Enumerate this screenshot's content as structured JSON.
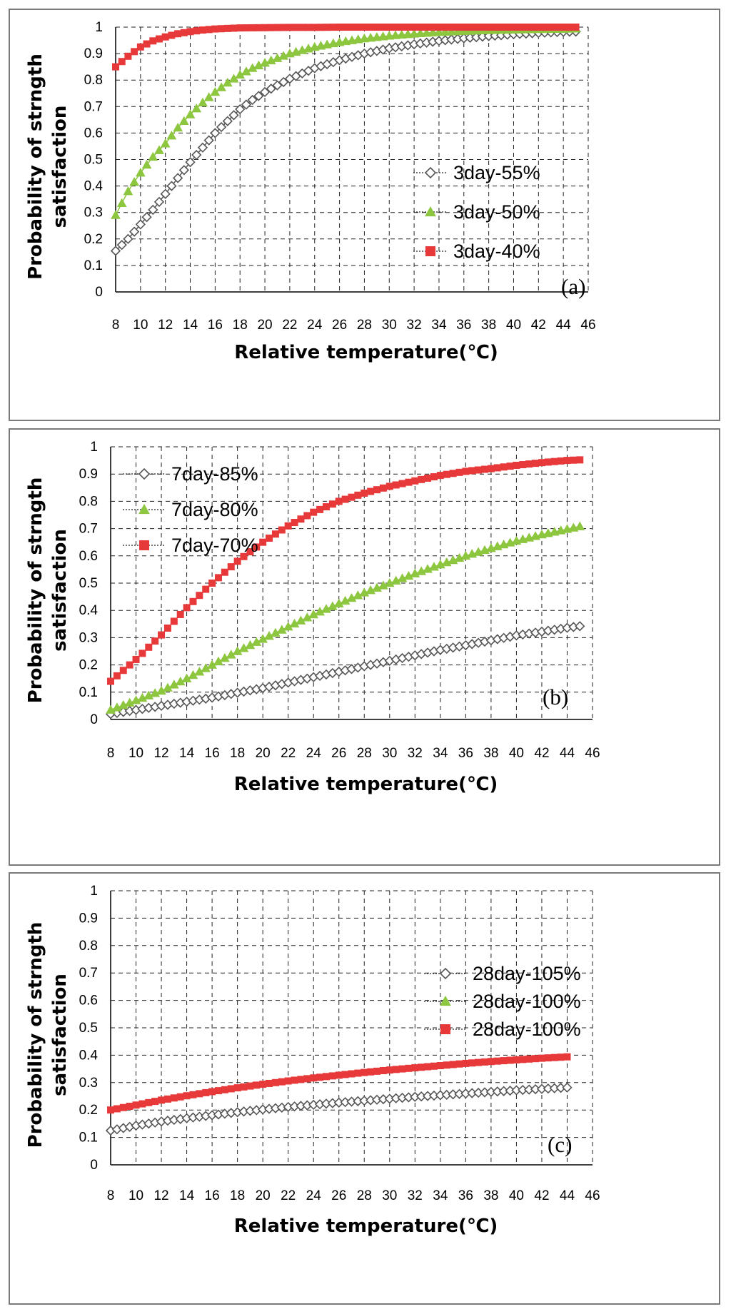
{
  "chart_data": [
    {
      "type": "line",
      "panel_label": "(a)",
      "xlabel": "Relative temperature(℃)",
      "ylabel_line1": "Probability of  strngth",
      "ylabel_line2": "satisfaction",
      "xlim": [
        8,
        46
      ],
      "ylim": [
        0,
        1
      ],
      "x_ticks": [
        "8",
        "10",
        "12",
        "14",
        "16",
        "18",
        "20",
        "22",
        "24",
        "26",
        "28",
        "30",
        "32",
        "34",
        "36",
        "38",
        "40",
        "42",
        "44",
        "46"
      ],
      "y_ticks": [
        "0",
        "0.1",
        "0.2",
        "0.3",
        "0.4",
        "0.5",
        "0.6",
        "0.7",
        "0.8",
        "0.9",
        "1"
      ],
      "legend_position": "center-right",
      "series": [
        {
          "name": "3day-55%",
          "marker": "diamond",
          "color": "#555555",
          "x": [
            8,
            9,
            10,
            11,
            12,
            13,
            14,
            15,
            16,
            17,
            18,
            19,
            20,
            22,
            24,
            26,
            28,
            30,
            32,
            34,
            36,
            38,
            40,
            42,
            44,
            45
          ],
          "values": [
            0.155,
            0.2,
            0.255,
            0.31,
            0.37,
            0.43,
            0.49,
            0.545,
            0.6,
            0.645,
            0.69,
            0.725,
            0.755,
            0.805,
            0.845,
            0.875,
            0.9,
            0.92,
            0.935,
            0.948,
            0.958,
            0.966,
            0.973,
            0.978,
            0.982,
            0.983
          ]
        },
        {
          "name": "3day-50%",
          "marker": "triangle",
          "color": "#8dc63f",
          "x": [
            8,
            9,
            10,
            11,
            12,
            13,
            14,
            15,
            16,
            17,
            18,
            19,
            20,
            22,
            24,
            26,
            28,
            30,
            32,
            34,
            36,
            38,
            40,
            42,
            44,
            45
          ],
          "values": [
            0.29,
            0.38,
            0.45,
            0.51,
            0.56,
            0.62,
            0.67,
            0.715,
            0.755,
            0.79,
            0.82,
            0.845,
            0.865,
            0.9,
            0.925,
            0.943,
            0.957,
            0.967,
            0.975,
            0.981,
            0.985,
            0.988,
            0.99,
            0.992,
            0.993,
            0.994
          ]
        },
        {
          "name": "3day-40%",
          "marker": "square",
          "color": "#e8393a",
          "x": [
            8,
            9,
            10,
            11,
            12,
            13,
            14,
            15,
            16,
            17,
            18,
            20,
            22,
            24,
            26,
            28,
            30,
            32,
            34,
            36,
            38,
            40,
            42,
            44,
            45
          ],
          "values": [
            0.85,
            0.89,
            0.925,
            0.948,
            0.963,
            0.975,
            0.983,
            0.989,
            0.993,
            0.995,
            0.997,
            0.998,
            0.999,
            0.999,
            1,
            1,
            1,
            1,
            1,
            1,
            1,
            1,
            1,
            1,
            1
          ]
        }
      ]
    },
    {
      "type": "line",
      "panel_label": "(b)",
      "xlabel": "Relative temperature(℃)",
      "ylabel_line1": "Probability of  strngth",
      "ylabel_line2": "satisfaction",
      "xlim": [
        8,
        46
      ],
      "ylim": [
        0,
        1
      ],
      "x_ticks": [
        "8",
        "10",
        "12",
        "14",
        "16",
        "18",
        "20",
        "22",
        "24",
        "26",
        "28",
        "30",
        "32",
        "34",
        "36",
        "38",
        "40",
        "42",
        "44",
        "46"
      ],
      "y_ticks": [
        "0",
        "0.1",
        "0.2",
        "0.3",
        "0.4",
        "0.5",
        "0.6",
        "0.7",
        "0.8",
        "0.9",
        "1"
      ],
      "legend_position": "top-left",
      "series": [
        {
          "name": "7day-85%",
          "marker": "diamond",
          "color": "#555555",
          "x": [
            8,
            10,
            12,
            14,
            16,
            18,
            20,
            22,
            24,
            26,
            28,
            30,
            32,
            34,
            36,
            38,
            40,
            42,
            44,
            45
          ],
          "values": [
            0.02,
            0.035,
            0.05,
            0.065,
            0.08,
            0.098,
            0.115,
            0.135,
            0.155,
            0.175,
            0.195,
            0.215,
            0.235,
            0.255,
            0.272,
            0.29,
            0.308,
            0.322,
            0.336,
            0.342
          ]
        },
        {
          "name": "7day-80%",
          "marker": "triangle",
          "color": "#8dc63f",
          "x": [
            8,
            10,
            12,
            14,
            16,
            18,
            20,
            22,
            24,
            26,
            28,
            30,
            32,
            34,
            36,
            38,
            40,
            42,
            44,
            45
          ],
          "values": [
            0.035,
            0.07,
            0.105,
            0.15,
            0.2,
            0.25,
            0.295,
            0.34,
            0.385,
            0.425,
            0.465,
            0.5,
            0.535,
            0.568,
            0.6,
            0.628,
            0.655,
            0.678,
            0.698,
            0.708
          ]
        },
        {
          "name": "7day-70%",
          "marker": "square",
          "color": "#e8393a",
          "x": [
            8,
            10,
            12,
            14,
            16,
            18,
            20,
            22,
            24,
            26,
            28,
            30,
            32,
            34,
            36,
            38,
            40,
            42,
            44,
            45
          ],
          "values": [
            0.14,
            0.22,
            0.31,
            0.41,
            0.5,
            0.58,
            0.65,
            0.71,
            0.76,
            0.8,
            0.83,
            0.855,
            0.875,
            0.895,
            0.91,
            0.92,
            0.932,
            0.942,
            0.95,
            0.952
          ]
        }
      ]
    },
    {
      "type": "line",
      "panel_label": "(c)",
      "xlabel": "Relative temperature(℃)",
      "ylabel_line1": "Probability of  strngth",
      "ylabel_line2": "satisfaction",
      "xlim": [
        8,
        46
      ],
      "ylim": [
        0,
        1
      ],
      "x_ticks": [
        "8",
        "10",
        "12",
        "14",
        "16",
        "18",
        "20",
        "22",
        "24",
        "26",
        "28",
        "30",
        "32",
        "34",
        "36",
        "38",
        "40",
        "42",
        "44",
        "46"
      ],
      "y_ticks": [
        "0",
        "0.1",
        "0.2",
        "0.3",
        "0.4",
        "0.5",
        "0.6",
        "0.7",
        "0.8",
        "0.9",
        "1"
      ],
      "legend_position": "center-right",
      "series": [
        {
          "name": "28day-105%",
          "marker": "diamond",
          "color": "#555555",
          "x": [
            8,
            10,
            12,
            14,
            16,
            18,
            20,
            22,
            24,
            26,
            28,
            30,
            32,
            34,
            36,
            38,
            40,
            42,
            44
          ],
          "values": [
            0.125,
            0.143,
            0.158,
            0.17,
            0.181,
            0.192,
            0.202,
            0.211,
            0.219,
            0.227,
            0.234,
            0.241,
            0.248,
            0.254,
            0.26,
            0.266,
            0.272,
            0.277,
            0.282
          ]
        },
        {
          "name": "28day-100%",
          "marker": "triangle",
          "color": "#8dc63f",
          "x": [],
          "values": []
        },
        {
          "name": "28day-100%",
          "marker": "square",
          "color": "#e8393a",
          "x": [
            8,
            10,
            12,
            14,
            16,
            18,
            20,
            22,
            24,
            26,
            28,
            30,
            32,
            34,
            36,
            38,
            40,
            42,
            44
          ],
          "values": [
            0.2,
            0.218,
            0.236,
            0.252,
            0.267,
            0.281,
            0.294,
            0.306,
            0.317,
            0.327,
            0.337,
            0.346,
            0.354,
            0.362,
            0.37,
            0.377,
            0.383,
            0.389,
            0.394
          ]
        }
      ]
    }
  ]
}
